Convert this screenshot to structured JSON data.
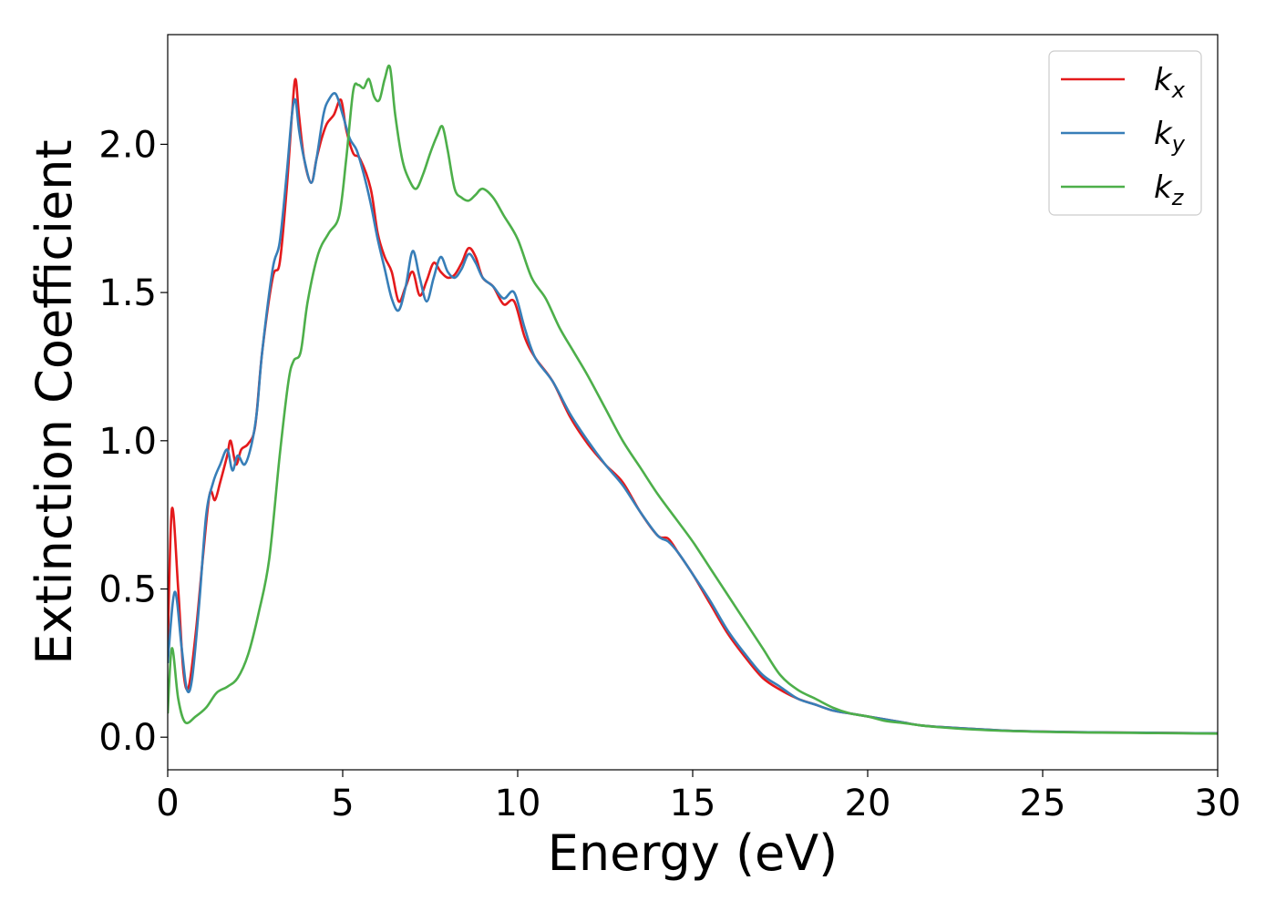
{
  "chart_data": {
    "type": "line",
    "xlabel": "Energy (eV)",
    "ylabel": "Extinction Coefficient",
    "xlim": [
      0,
      30
    ],
    "ylim": [
      -0.11,
      2.37
    ],
    "xticks": [
      0,
      5,
      10,
      15,
      20,
      25,
      30
    ],
    "xtick_labels": [
      "0",
      "5",
      "10",
      "15",
      "20",
      "25",
      "30"
    ],
    "yticks": [
      0.0,
      0.5,
      1.0,
      1.5,
      2.0
    ],
    "ytick_labels": [
      "0.0",
      "0.5",
      "1.0",
      "1.5",
      "2.0"
    ],
    "grid": false,
    "legend_position": "top-right",
    "series": [
      {
        "name": "k_x",
        "label_main": "k",
        "label_sub": "x",
        "color": "#e41a1c",
        "x": [
          0,
          0.12,
          0.3,
          0.45,
          0.6,
          0.8,
          1.0,
          1.2,
          1.35,
          1.5,
          1.7,
          1.8,
          1.95,
          2.1,
          2.3,
          2.5,
          2.7,
          3.0,
          3.2,
          3.4,
          3.55,
          3.65,
          3.75,
          3.9,
          4.1,
          4.25,
          4.4,
          4.55,
          4.75,
          4.95,
          5.1,
          5.3,
          5.5,
          5.8,
          6.0,
          6.2,
          6.4,
          6.6,
          6.8,
          7.0,
          7.2,
          7.4,
          7.6,
          7.8,
          8.0,
          8.2,
          8.4,
          8.6,
          8.8,
          9.0,
          9.3,
          9.6,
          9.9,
          10.2,
          10.5,
          11.0,
          11.5,
          12.0,
          12.5,
          13.0,
          13.5,
          14.0,
          14.3,
          14.6,
          15.0,
          15.5,
          16.0,
          16.5,
          17.0,
          17.5,
          18.0,
          18.5,
          19.0,
          19.5,
          20.0,
          20.5,
          21.0,
          21.5,
          22.0,
          23.0,
          24.0,
          25.0,
          26.0,
          27.0,
          28.0,
          29.0,
          30.0
        ],
        "y": [
          0.3,
          0.77,
          0.5,
          0.22,
          0.17,
          0.35,
          0.6,
          0.82,
          0.8,
          0.86,
          0.95,
          1.0,
          0.92,
          0.97,
          0.99,
          1.05,
          1.3,
          1.55,
          1.6,
          1.85,
          2.1,
          2.22,
          2.1,
          1.95,
          1.87,
          1.95,
          2.02,
          2.07,
          2.1,
          2.15,
          2.05,
          1.97,
          1.95,
          1.85,
          1.7,
          1.62,
          1.57,
          1.47,
          1.52,
          1.57,
          1.49,
          1.54,
          1.6,
          1.57,
          1.55,
          1.56,
          1.6,
          1.65,
          1.62,
          1.55,
          1.52,
          1.46,
          1.47,
          1.35,
          1.28,
          1.2,
          1.08,
          0.99,
          0.92,
          0.86,
          0.76,
          0.68,
          0.67,
          0.62,
          0.55,
          0.45,
          0.35,
          0.27,
          0.2,
          0.16,
          0.13,
          0.11,
          0.09,
          0.08,
          0.07,
          0.06,
          0.05,
          0.04,
          0.035,
          0.028,
          0.022,
          0.019,
          0.017,
          0.016,
          0.015,
          0.014,
          0.013
        ]
      },
      {
        "name": "k_y",
        "label_main": "k",
        "label_sub": "y",
        "color": "#377eb8",
        "x": [
          0,
          0.2,
          0.4,
          0.55,
          0.7,
          0.9,
          1.1,
          1.3,
          1.5,
          1.7,
          1.85,
          2.0,
          2.2,
          2.4,
          2.55,
          2.7,
          3.0,
          3.2,
          3.4,
          3.55,
          3.65,
          3.75,
          3.9,
          4.1,
          4.25,
          4.45,
          4.6,
          4.8,
          5.0,
          5.2,
          5.4,
          5.6,
          5.8,
          6.0,
          6.2,
          6.4,
          6.6,
          6.8,
          7.0,
          7.2,
          7.4,
          7.6,
          7.8,
          8.0,
          8.2,
          8.4,
          8.6,
          8.8,
          9.0,
          9.3,
          9.6,
          9.9,
          10.2,
          10.5,
          11.0,
          11.5,
          12.0,
          12.5,
          13.0,
          13.5,
          14.0,
          14.3,
          14.6,
          15.0,
          15.5,
          16.0,
          16.5,
          17.0,
          17.5,
          18.0,
          18.5,
          19.0,
          19.5,
          20.0,
          20.5,
          21.0,
          21.5,
          22.0,
          23.0,
          24.0,
          25.0,
          26.0,
          27.0,
          28.0,
          29.0,
          30.0
        ],
        "y": [
          0.25,
          0.49,
          0.3,
          0.16,
          0.2,
          0.45,
          0.75,
          0.86,
          0.92,
          0.97,
          0.9,
          0.95,
          0.92,
          0.99,
          1.1,
          1.3,
          1.58,
          1.67,
          1.9,
          2.1,
          2.15,
          2.05,
          1.95,
          1.87,
          1.95,
          2.1,
          2.15,
          2.17,
          2.1,
          2.02,
          1.98,
          1.9,
          1.8,
          1.68,
          1.58,
          1.48,
          1.44,
          1.52,
          1.64,
          1.55,
          1.47,
          1.55,
          1.62,
          1.57,
          1.55,
          1.58,
          1.63,
          1.6,
          1.55,
          1.52,
          1.48,
          1.5,
          1.38,
          1.28,
          1.2,
          1.09,
          1.0,
          0.92,
          0.85,
          0.76,
          0.68,
          0.66,
          0.62,
          0.55,
          0.46,
          0.36,
          0.28,
          0.21,
          0.17,
          0.13,
          0.11,
          0.09,
          0.08,
          0.07,
          0.06,
          0.05,
          0.04,
          0.035,
          0.028,
          0.022,
          0.019,
          0.017,
          0.016,
          0.015,
          0.014,
          0.013
        ]
      },
      {
        "name": "k_z",
        "label_main": "k",
        "label_sub": "z",
        "color": "#4daf4a",
        "x": [
          0,
          0.12,
          0.3,
          0.5,
          0.8,
          1.1,
          1.4,
          1.7,
          2.0,
          2.3,
          2.6,
          2.9,
          3.2,
          3.45,
          3.6,
          3.8,
          4.0,
          4.3,
          4.6,
          4.9,
          5.1,
          5.3,
          5.45,
          5.6,
          5.75,
          5.9,
          6.05,
          6.2,
          6.35,
          6.5,
          6.7,
          6.9,
          7.1,
          7.3,
          7.5,
          7.7,
          7.85,
          8.0,
          8.2,
          8.4,
          8.6,
          8.8,
          9.0,
          9.3,
          9.6,
          10.0,
          10.4,
          10.8,
          11.2,
          11.6,
          12.0,
          12.5,
          13.0,
          13.5,
          14.0,
          14.5,
          15.0,
          15.5,
          16.0,
          16.5,
          17.0,
          17.5,
          18.0,
          18.5,
          19.0,
          19.5,
          20.0,
          20.5,
          21.0,
          21.5,
          22.0,
          23.0,
          24.0,
          25.0,
          26.0,
          27.0,
          28.0,
          29.0,
          30.0
        ],
        "y": [
          0.08,
          0.3,
          0.13,
          0.05,
          0.07,
          0.1,
          0.15,
          0.17,
          0.2,
          0.28,
          0.42,
          0.6,
          0.95,
          1.2,
          1.27,
          1.3,
          1.47,
          1.63,
          1.7,
          1.76,
          1.95,
          2.18,
          2.2,
          2.19,
          2.22,
          2.16,
          2.15,
          2.22,
          2.26,
          2.1,
          1.95,
          1.88,
          1.85,
          1.9,
          1.97,
          2.03,
          2.06,
          1.98,
          1.85,
          1.82,
          1.81,
          1.83,
          1.85,
          1.82,
          1.76,
          1.68,
          1.55,
          1.48,
          1.38,
          1.3,
          1.22,
          1.11,
          1.0,
          0.91,
          0.82,
          0.74,
          0.66,
          0.57,
          0.48,
          0.39,
          0.3,
          0.21,
          0.16,
          0.13,
          0.1,
          0.08,
          0.07,
          0.055,
          0.048,
          0.04,
          0.034,
          0.026,
          0.021,
          0.018,
          0.016,
          0.015,
          0.014,
          0.013,
          0.012
        ]
      }
    ]
  }
}
